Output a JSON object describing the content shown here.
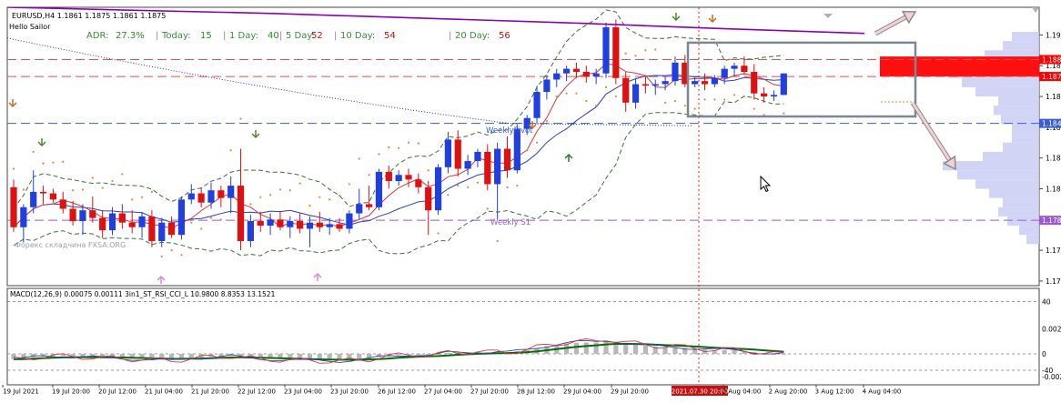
{
  "header": {
    "symbol_line": "EURUSD,H4  1.1861 1.1875 1.1861 1.1875",
    "indicator_name": "Hello Sailor"
  },
  "adr_panel": {
    "items": [
      {
        "label": "ADR:",
        "value": "27.3%"
      },
      {
        "label": "Today:",
        "value": "15"
      },
      {
        "label": "1 Day:",
        "value": "40"
      },
      {
        "label": "5 Day:",
        "value": "52"
      },
      {
        "label": "10 Day:",
        "value": "54"
      },
      {
        "label": "20 Day:",
        "value": "56"
      }
    ]
  },
  "price_labels": [
    {
      "text": "1.188",
      "value": 1.1884,
      "bg": "#ff0000"
    },
    {
      "text": "1.187",
      "value": 1.1873,
      "bg": "#ff0000"
    },
    {
      "text": "1.184",
      "value": 1.18425,
      "bg": "#3a5fcd"
    },
    {
      "text": "1.178",
      "value": 1.17795,
      "bg": "#9b59d6"
    }
  ],
  "pivot_labels": {
    "weekly_pivot": "WeeklyPivot",
    "weekly_s1": "Weekly S1"
  },
  "watermark": "Форекс складчина FXSA.ORG",
  "macd_header": "MACD(12,26,9) 0.00075 0.00111  3in1_ST_RSI_CCI_L 10.9800 8.8353 13.1521",
  "macd_axis_labels": [
    "0.002",
    "40",
    "0",
    "-40",
    "-0.002"
  ],
  "highlight_time": "2021.07.30 20:00",
  "colors": {
    "bull": "#1f3fe0",
    "bear": "#e01010",
    "ma_blue": "#2b3fb8",
    "ma_red": "#d33a3a",
    "bands": "#3c6e3c",
    "psar": "#d98a3a",
    "purple": "#8a00b8",
    "navy_dots": "#2a2aa8",
    "macd_bar": "#b8b8b8",
    "signal_green": "#0a6a0a",
    "volume_profile": "#c9ccf2",
    "box": "#7a8894"
  },
  "chart_data": {
    "type": "candlestick",
    "symbol": "EURUSD",
    "timeframe": "H4",
    "ylim": [
      1.1737,
      1.1918
    ],
    "yticks": [
      1.19,
      1.188,
      1.186,
      1.184,
      1.182,
      1.18,
      1.178,
      1.176,
      1.174
    ],
    "xticks": [
      "19 Jul 2021",
      "19 Jul 20:00",
      "20 Jul 12:00",
      "21 Jul 04:00",
      "21 Jul 20:00",
      "22 Jul 12:00",
      "23 Jul 04:00",
      "23 Jul 20:00",
      "26 Jul 12:00",
      "27 Jul 04:00",
      "27 Jul 20:00",
      "28 Jul 12:00",
      "29 Jul 04:00",
      "29 Jul 20:00",
      "2021.07.30 20:00",
      "2 Aug 04:00",
      "2 Aug 20:00",
      "3 Aug 12:00",
      "4 Aug 04:00"
    ],
    "candles": [
      {
        "o": 1.1801,
        "h": 1.1806,
        "l": 1.1772,
        "c": 1.1775
      },
      {
        "o": 1.1775,
        "h": 1.179,
        "l": 1.1765,
        "c": 1.1788
      },
      {
        "o": 1.1788,
        "h": 1.1812,
        "l": 1.1784,
        "c": 1.1798
      },
      {
        "o": 1.1798,
        "h": 1.1802,
        "l": 1.179,
        "c": 1.1797
      },
      {
        "o": 1.1797,
        "h": 1.18,
        "l": 1.1791,
        "c": 1.1793
      },
      {
        "o": 1.1793,
        "h": 1.1798,
        "l": 1.1784,
        "c": 1.1787
      },
      {
        "o": 1.1787,
        "h": 1.1792,
        "l": 1.1776,
        "c": 1.1779
      },
      {
        "o": 1.1779,
        "h": 1.179,
        "l": 1.177,
        "c": 1.1786
      },
      {
        "o": 1.1786,
        "h": 1.1795,
        "l": 1.1778,
        "c": 1.1781
      },
      {
        "o": 1.1781,
        "h": 1.1786,
        "l": 1.1768,
        "c": 1.1773
      },
      {
        "o": 1.1773,
        "h": 1.1788,
        "l": 1.177,
        "c": 1.1784
      },
      {
        "o": 1.1784,
        "h": 1.179,
        "l": 1.1774,
        "c": 1.1778
      },
      {
        "o": 1.1778,
        "h": 1.1786,
        "l": 1.1771,
        "c": 1.1775
      },
      {
        "o": 1.1775,
        "h": 1.1785,
        "l": 1.1768,
        "c": 1.1782
      },
      {
        "o": 1.1782,
        "h": 1.1786,
        "l": 1.1762,
        "c": 1.1766
      },
      {
        "o": 1.1766,
        "h": 1.1781,
        "l": 1.1762,
        "c": 1.1778
      },
      {
        "o": 1.1778,
        "h": 1.1782,
        "l": 1.1768,
        "c": 1.177
      },
      {
        "o": 1.177,
        "h": 1.1795,
        "l": 1.1767,
        "c": 1.1793
      },
      {
        "o": 1.1793,
        "h": 1.1803,
        "l": 1.179,
        "c": 1.1797
      },
      {
        "o": 1.1797,
        "h": 1.1801,
        "l": 1.1788,
        "c": 1.1791
      },
      {
        "o": 1.1791,
        "h": 1.1804,
        "l": 1.1787,
        "c": 1.1799
      },
      {
        "o": 1.1799,
        "h": 1.1802,
        "l": 1.1788,
        "c": 1.1794
      },
      {
        "o": 1.1794,
        "h": 1.1808,
        "l": 1.1784,
        "c": 1.1802
      },
      {
        "o": 1.1802,
        "h": 1.1826,
        "l": 1.176,
        "c": 1.1766
      },
      {
        "o": 1.1766,
        "h": 1.1783,
        "l": 1.1762,
        "c": 1.1779
      },
      {
        "o": 1.1779,
        "h": 1.1785,
        "l": 1.1772,
        "c": 1.1776
      },
      {
        "o": 1.1776,
        "h": 1.1784,
        "l": 1.177,
        "c": 1.178
      },
      {
        "o": 1.178,
        "h": 1.1785,
        "l": 1.1773,
        "c": 1.1775
      },
      {
        "o": 1.1775,
        "h": 1.1782,
        "l": 1.1768,
        "c": 1.1779
      },
      {
        "o": 1.1779,
        "h": 1.1784,
        "l": 1.1771,
        "c": 1.1774
      },
      {
        "o": 1.1774,
        "h": 1.1782,
        "l": 1.1762,
        "c": 1.1778
      },
      {
        "o": 1.1778,
        "h": 1.1785,
        "l": 1.1772,
        "c": 1.1775
      },
      {
        "o": 1.1775,
        "h": 1.1781,
        "l": 1.177,
        "c": 1.1777
      },
      {
        "o": 1.1777,
        "h": 1.1781,
        "l": 1.1772,
        "c": 1.1774
      },
      {
        "o": 1.1774,
        "h": 1.1786,
        "l": 1.1771,
        "c": 1.1784
      },
      {
        "o": 1.1784,
        "h": 1.18,
        "l": 1.178,
        "c": 1.179
      },
      {
        "o": 1.179,
        "h": 1.1802,
        "l": 1.1786,
        "c": 1.1788
      },
      {
        "o": 1.1788,
        "h": 1.1813,
        "l": 1.1786,
        "c": 1.1811
      },
      {
        "o": 1.1811,
        "h": 1.1815,
        "l": 1.18,
        "c": 1.1805
      },
      {
        "o": 1.1805,
        "h": 1.1812,
        "l": 1.1802,
        "c": 1.1809
      },
      {
        "o": 1.1809,
        "h": 1.1813,
        "l": 1.1801,
        "c": 1.1806
      },
      {
        "o": 1.1806,
        "h": 1.181,
        "l": 1.1797,
        "c": 1.1801
      },
      {
        "o": 1.1801,
        "h": 1.1805,
        "l": 1.177,
        "c": 1.1786
      },
      {
        "o": 1.1786,
        "h": 1.1816,
        "l": 1.1783,
        "c": 1.1814
      },
      {
        "o": 1.1814,
        "h": 1.1837,
        "l": 1.181,
        "c": 1.1832
      },
      {
        "o": 1.1832,
        "h": 1.1838,
        "l": 1.1808,
        "c": 1.1813
      },
      {
        "o": 1.1813,
        "h": 1.1822,
        "l": 1.1809,
        "c": 1.1818
      },
      {
        "o": 1.1818,
        "h": 1.1826,
        "l": 1.1814,
        "c": 1.1824
      },
      {
        "o": 1.1824,
        "h": 1.1829,
        "l": 1.1799,
        "c": 1.1803
      },
      {
        "o": 1.1803,
        "h": 1.183,
        "l": 1.178,
        "c": 1.1826
      },
      {
        "o": 1.1826,
        "h": 1.1834,
        "l": 1.1807,
        "c": 1.1812
      },
      {
        "o": 1.1812,
        "h": 1.1842,
        "l": 1.181,
        "c": 1.1839
      },
      {
        "o": 1.1839,
        "h": 1.1848,
        "l": 1.1835,
        "c": 1.1846
      },
      {
        "o": 1.1846,
        "h": 1.1867,
        "l": 1.1842,
        "c": 1.1863
      },
      {
        "o": 1.1863,
        "h": 1.1874,
        "l": 1.1858,
        "c": 1.1871
      },
      {
        "o": 1.1871,
        "h": 1.1878,
        "l": 1.1866,
        "c": 1.1875
      },
      {
        "o": 1.1875,
        "h": 1.188,
        "l": 1.187,
        "c": 1.1878
      },
      {
        "o": 1.1878,
        "h": 1.1882,
        "l": 1.1872,
        "c": 1.1876
      },
      {
        "o": 1.1876,
        "h": 1.188,
        "l": 1.1869,
        "c": 1.1873
      },
      {
        "o": 1.1873,
        "h": 1.1878,
        "l": 1.1868,
        "c": 1.1875
      },
      {
        "o": 1.1875,
        "h": 1.1908,
        "l": 1.1872,
        "c": 1.1905
      },
      {
        "o": 1.1905,
        "h": 1.191,
        "l": 1.1868,
        "c": 1.1872
      },
      {
        "o": 1.1872,
        "h": 1.1876,
        "l": 1.185,
        "c": 1.1856
      },
      {
        "o": 1.1856,
        "h": 1.1872,
        "l": 1.1852,
        "c": 1.1868
      },
      {
        "o": 1.1868,
        "h": 1.1873,
        "l": 1.1862,
        "c": 1.1867
      },
      {
        "o": 1.1867,
        "h": 1.1871,
        "l": 1.1861,
        "c": 1.1868
      },
      {
        "o": 1.1868,
        "h": 1.1873,
        "l": 1.1864,
        "c": 1.187
      },
      {
        "o": 1.187,
        "h": 1.1886,
        "l": 1.1867,
        "c": 1.1882
      },
      {
        "o": 1.1882,
        "h": 1.1887,
        "l": 1.1866,
        "c": 1.1868
      },
      {
        "o": 1.1868,
        "h": 1.1873,
        "l": 1.1866,
        "c": 1.187
      },
      {
        "o": 1.187,
        "h": 1.1875,
        "l": 1.1864,
        "c": 1.1868
      },
      {
        "o": 1.1868,
        "h": 1.1874,
        "l": 1.1866,
        "c": 1.1872
      },
      {
        "o": 1.1872,
        "h": 1.188,
        "l": 1.1868,
        "c": 1.1878
      },
      {
        "o": 1.1878,
        "h": 1.1882,
        "l": 1.1873,
        "c": 1.188
      },
      {
        "o": 1.188,
        "h": 1.1886,
        "l": 1.1874,
        "c": 1.1876
      },
      {
        "o": 1.1876,
        "h": 1.1881,
        "l": 1.1858,
        "c": 1.1862
      },
      {
        "o": 1.1862,
        "h": 1.1866,
        "l": 1.1856,
        "c": 1.186
      },
      {
        "o": 1.186,
        "h": 1.1864,
        "l": 1.1857,
        "c": 1.1861
      },
      {
        "o": 1.1861,
        "h": 1.1875,
        "l": 1.1861,
        "c": 1.1875
      }
    ],
    "levels": [
      {
        "name": "upper-resistance",
        "value": 1.1884,
        "color": "#e05050",
        "style": "dashed"
      },
      {
        "name": "lower-resistance",
        "value": 1.1873,
        "color": "#e05050",
        "style": "dashed"
      },
      {
        "name": "weekly-pivot",
        "value": 1.18425,
        "color": "#3a5fcd",
        "style": "dashed"
      },
      {
        "name": "weekly-s1",
        "value": 1.17795,
        "color": "#9b59d6",
        "style": "dashed"
      }
    ]
  }
}
